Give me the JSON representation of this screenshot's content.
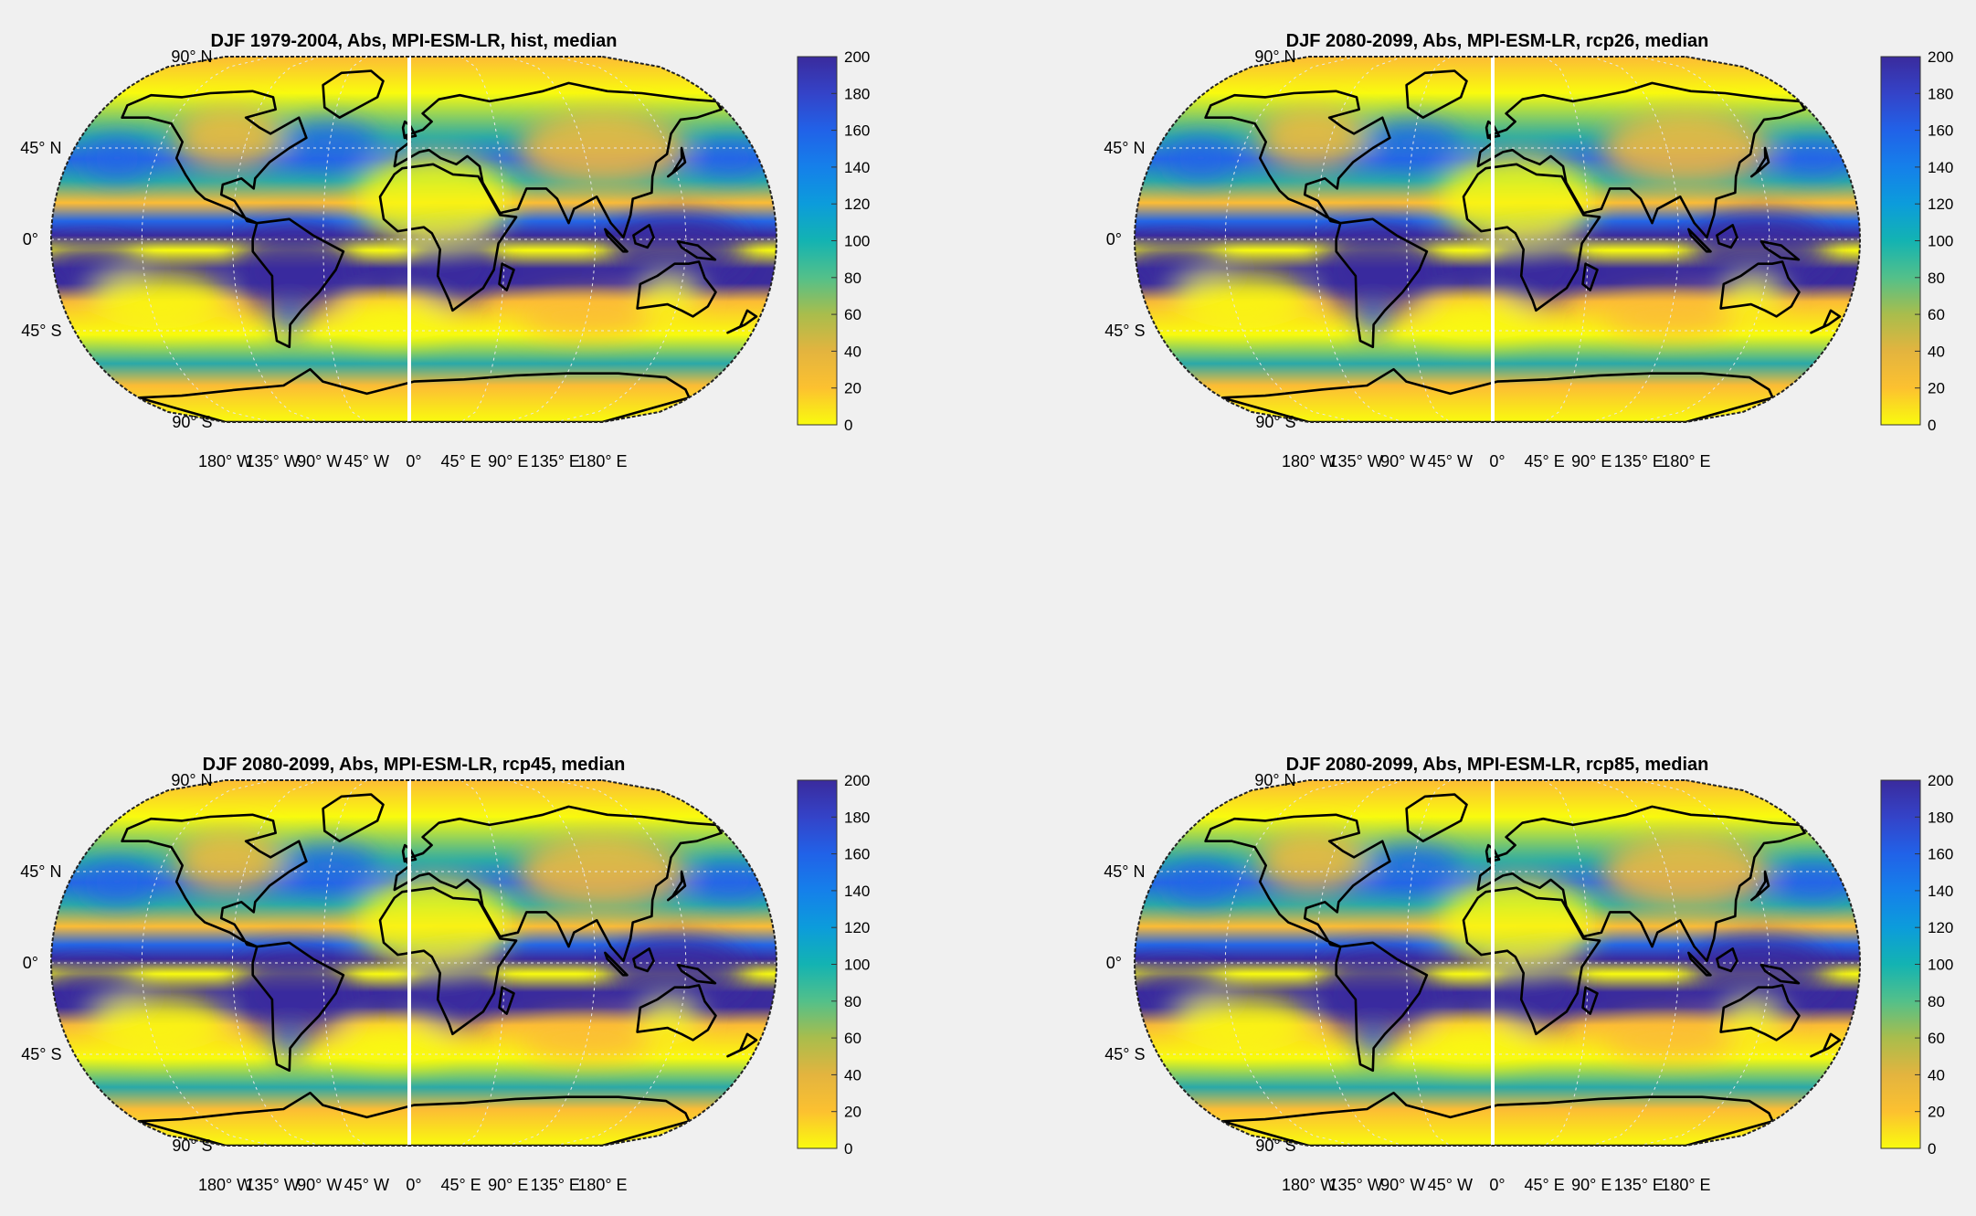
{
  "figure": {
    "panels": [
      {
        "title": "DJF 1979-2004, Abs, MPI-ESM-LR, hist, median"
      },
      {
        "title": "DJF 2080-2099, Abs, MPI-ESM-LR, rcp26, median"
      },
      {
        "title": "DJF 2080-2099, Abs, MPI-ESM-LR, rcp45, median"
      },
      {
        "title": "DJF 2080-2099, Abs, MPI-ESM-LR, rcp85, median"
      }
    ],
    "lat_labels": [
      {
        "deg": "90",
        "dir": "N",
        "lat": 90
      },
      {
        "deg": "45",
        "dir": "N",
        "lat": 45
      },
      {
        "deg": "0",
        "dir": "",
        "lat": 0
      },
      {
        "deg": "45",
        "dir": "S",
        "lat": -45
      },
      {
        "deg": "90",
        "dir": "S",
        "lat": -90
      }
    ],
    "lon_labels": [
      {
        "deg": "180",
        "dir": "W",
        "lon": -180
      },
      {
        "deg": "135",
        "dir": "W",
        "lon": -135
      },
      {
        "deg": "90",
        "dir": "W",
        "lon": -90
      },
      {
        "deg": "45",
        "dir": "W",
        "lon": -45
      },
      {
        "deg": "0",
        "dir": "",
        "lon": 0
      },
      {
        "deg": "45",
        "dir": "E",
        "lon": 45
      },
      {
        "deg": "90",
        "dir": "E",
        "lon": 90
      },
      {
        "deg": "135",
        "dir": "E",
        "lon": 135
      },
      {
        "deg": "180",
        "dir": "E",
        "lon": 180
      }
    ],
    "colorbar": {
      "ticks": [
        "0",
        "20",
        "40",
        "60",
        "80",
        "100",
        "120",
        "140",
        "160",
        "180",
        "200"
      ],
      "range": [
        0,
        200
      ],
      "colors": [
        "#f9fb0e",
        "#fcc130",
        "#e3b43f",
        "#a9bd4c",
        "#53c08a",
        "#13b3b2",
        "#0c9cdb",
        "#1580ea",
        "#2162e8",
        "#3443c8",
        "#3a2b9d"
      ]
    },
    "map_colors": {
      "yellow": "#f9fb0e",
      "orange": "#fcbc35",
      "teal": "#2aa8a8",
      "blue": "#2466e6",
      "navy": "#3a2b9d",
      "coast": "#000000",
      "seam": "#ffffff",
      "grid": "#e8e8e8"
    }
  }
}
